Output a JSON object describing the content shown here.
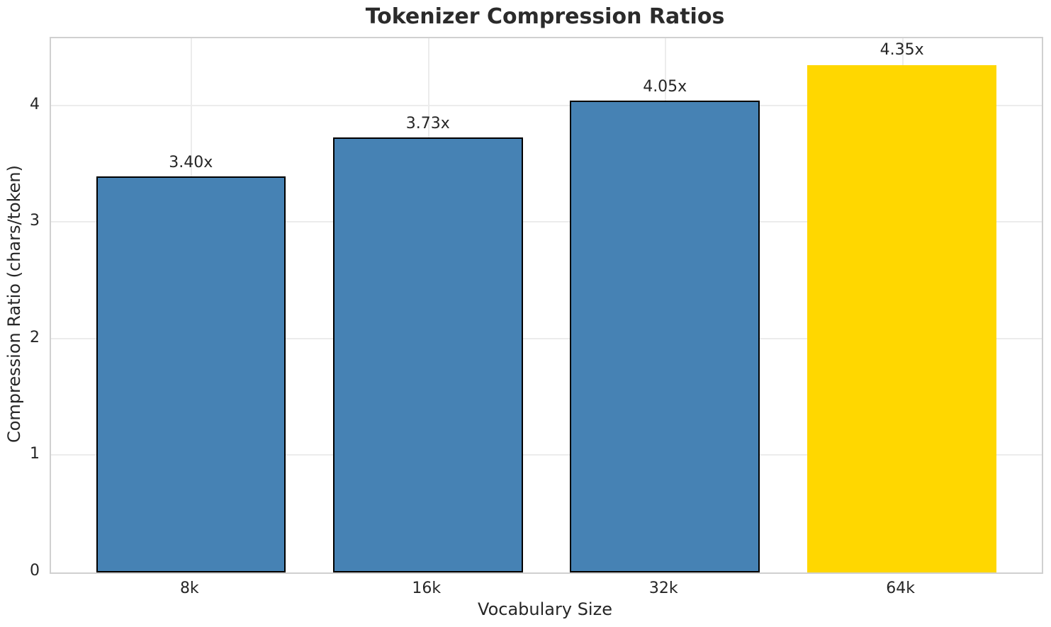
{
  "chart_data": {
    "type": "bar",
    "title": "Tokenizer Compression Ratios",
    "xlabel": "Vocabulary Size",
    "ylabel": "Compression Ratio (chars/token)",
    "categories": [
      "8k",
      "16k",
      "32k",
      "64k"
    ],
    "values": [
      3.4,
      3.73,
      4.05,
      4.35
    ],
    "bar_labels": [
      "3.40x",
      "3.73x",
      "4.05x",
      "4.35x"
    ],
    "bar_colors": [
      "#4682B4",
      "#4682B4",
      "#4682B4",
      "#FFD700"
    ],
    "bar_edge_colors": [
      "#000000",
      "#000000",
      "#000000",
      "none"
    ],
    "highlight_color": "#FFD700",
    "base_color": "#4682B4",
    "grid_color": "#ececec",
    "spine_color": "#d0d0d0",
    "text_color": "#262626",
    "ylim": [
      0,
      4.583
    ],
    "yticks": [
      0,
      1,
      2,
      3,
      4
    ],
    "xlim": [
      -0.59,
      3.59
    ],
    "bar_width": 0.8,
    "grid": true,
    "legend": "none"
  }
}
